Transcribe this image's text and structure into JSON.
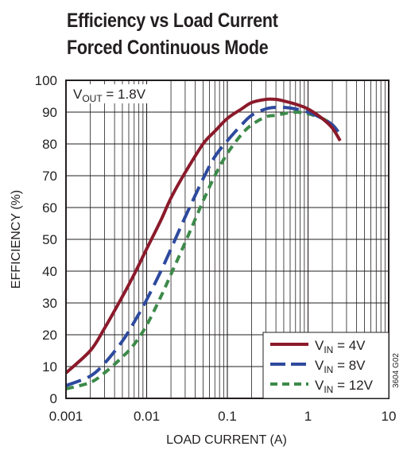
{
  "chart_data": {
    "type": "line",
    "title": "Efficiency vs Load Current",
    "subtitle": "Forced Continuous Mode",
    "xlabel": "LOAD CURRENT (A)",
    "ylabel": "EFFICIENCY (%)",
    "x_scale": "log",
    "xlim": [
      0.001,
      10
    ],
    "ylim": [
      0,
      100
    ],
    "x_ticks": [
      "0.001",
      "0.01",
      "0.1",
      "1",
      "10"
    ],
    "y_ticks": [
      "0",
      "10",
      "20",
      "30",
      "40",
      "50",
      "60",
      "70",
      "80",
      "90",
      "100"
    ],
    "grid": true,
    "legend_position": "bottom-right",
    "annotation": {
      "main": "V",
      "sub": "OUT",
      "rest": " = 1.8V"
    },
    "figure_code": "3604 G02",
    "series": [
      {
        "label_main": "V",
        "label_sub": "IN",
        "label_rest": " = 4V",
        "color": "#8b1a2b",
        "dash": "solid",
        "x": [
          0.001,
          0.002,
          0.003,
          0.005,
          0.007,
          0.01,
          0.015,
          0.02,
          0.03,
          0.05,
          0.07,
          0.1,
          0.15,
          0.2,
          0.3,
          0.4,
          0.5,
          0.7,
          1.0,
          1.5,
          2.0,
          2.5
        ],
        "y": [
          8,
          15,
          22,
          32,
          39,
          47,
          56,
          63,
          71,
          80,
          84,
          88,
          91,
          93,
          94,
          94,
          93.5,
          92.5,
          91,
          88,
          85,
          81
        ]
      },
      {
        "label_main": "V",
        "label_sub": "IN",
        "label_rest": " = 8V",
        "color": "#2e4a9e",
        "dash": "long-dash",
        "x": [
          0.001,
          0.002,
          0.003,
          0.005,
          0.007,
          0.01,
          0.015,
          0.02,
          0.03,
          0.05,
          0.07,
          0.1,
          0.15,
          0.2,
          0.3,
          0.4,
          0.5,
          0.7,
          1.0,
          1.5,
          2.0,
          2.5
        ],
        "y": [
          4,
          7,
          11,
          18,
          24,
          31,
          40,
          47,
          57,
          69,
          76,
          81,
          86,
          89,
          91,
          91.5,
          91.5,
          91,
          90,
          88,
          86,
          83
        ]
      },
      {
        "label_main": "V",
        "label_sub": "IN",
        "label_rest": " = 12V",
        "color": "#3d8a4a",
        "dash": "short-dash",
        "x": [
          0.001,
          0.002,
          0.003,
          0.005,
          0.007,
          0.01,
          0.015,
          0.02,
          0.03,
          0.05,
          0.07,
          0.1,
          0.15,
          0.2,
          0.3,
          0.4,
          0.5,
          0.7,
          1.0,
          1.5,
          2.0,
          2.5
        ],
        "y": [
          3,
          5,
          8,
          13,
          17,
          23,
          32,
          39,
          49,
          62,
          70,
          77,
          83,
          86,
          88.5,
          89,
          89.5,
          90,
          89.5,
          88,
          86,
          83
        ]
      }
    ]
  }
}
